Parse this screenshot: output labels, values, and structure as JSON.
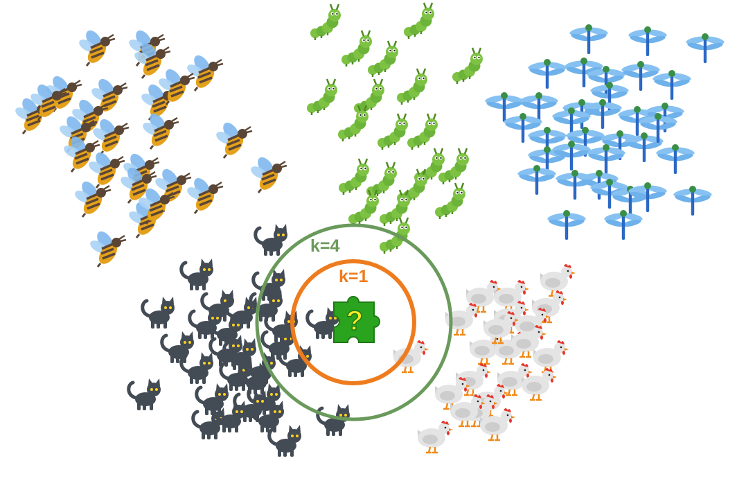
{
  "rings": [
    {
      "label": "k=1",
      "color": "#ee7c1e"
    },
    {
      "label": "k=4",
      "color": "#6a9a5b"
    }
  ],
  "query": {
    "symbol": "?",
    "color": "#2aa31f",
    "symbol_color": "#f3ea22"
  },
  "clusters": [
    {
      "name": "bee",
      "count": 26
    },
    {
      "name": "caterpillar",
      "count": 20
    },
    {
      "name": "dragonfly",
      "count": 35
    },
    {
      "name": "cat",
      "count": 29
    },
    {
      "name": "chicken",
      "count": 22
    }
  ],
  "colors": {
    "bee_body": "#e4a11b",
    "bee_stripe": "#5b4636",
    "bee_wing": "#7fb8ee",
    "caterpillar_body": "#7dc242",
    "caterpillar_dark": "#4f8a22",
    "dragonfly_body": "#2b68c4",
    "dragonfly_wing": "#86c1f2",
    "dragonfly_head": "#3a8f48",
    "cat_body": "#434b55",
    "cat_eye": "#ffd21e",
    "chicken_body": "#e4e4e4",
    "chicken_comb": "#e7352a",
    "chicken_leg": "#f08a18"
  }
}
